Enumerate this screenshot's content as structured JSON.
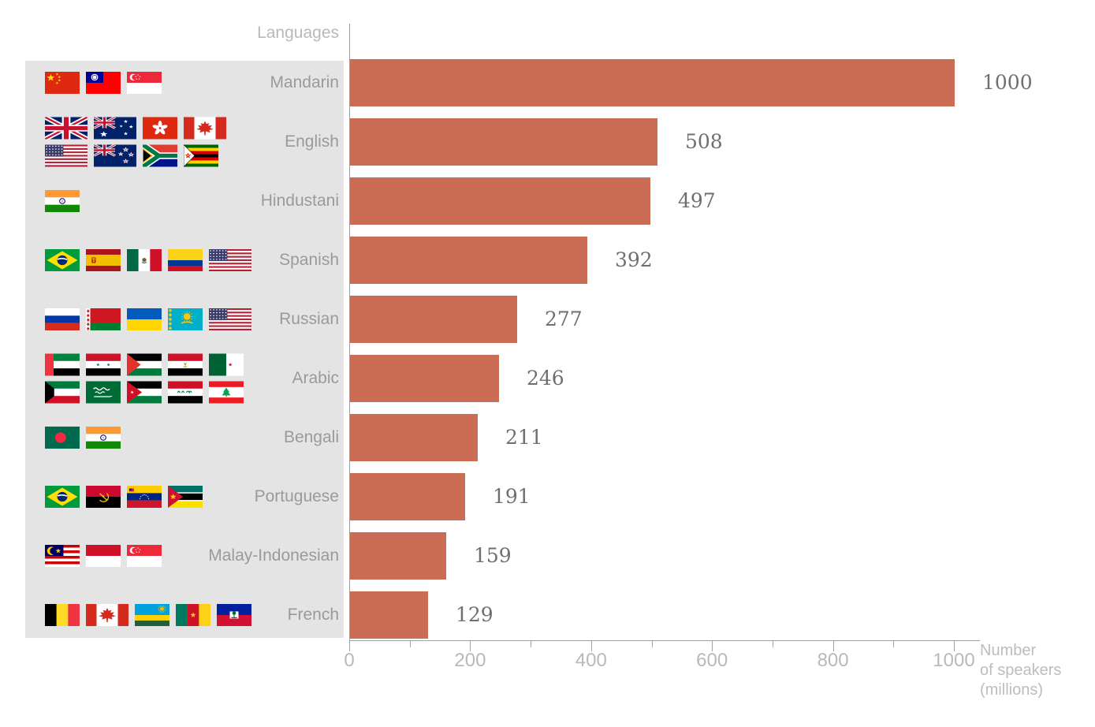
{
  "header": {
    "column_label": "Languages"
  },
  "axis": {
    "caption_lines": [
      "Number",
      "of speakers",
      "(millions)"
    ]
  },
  "chart_data": {
    "type": "bar",
    "orientation": "horizontal",
    "title": "",
    "column_header": "Languages",
    "xlabel": "Number of speakers (millions)",
    "ylabel": "Languages",
    "xlim": [
      0,
      1000
    ],
    "x_ticks": [
      0,
      200,
      400,
      600,
      800,
      1000
    ],
    "x_minor_ticks": [
      100,
      300,
      500,
      700,
      900
    ],
    "grid": false,
    "legend": false,
    "bar_color": "#cb6d54",
    "panel_color": "#e4e4e4",
    "axis_color": "#9e9e9e",
    "categories": [
      "Mandarin",
      "English",
      "Hindustani",
      "Spanish",
      "Russian",
      "Arabic",
      "Bengali",
      "Portuguese",
      "Malay-Indonesian",
      "French"
    ],
    "values": [
      1000,
      508,
      497,
      392,
      277,
      246,
      211,
      191,
      159,
      129
    ],
    "flags": [
      [
        "china",
        "taiwan",
        "singapore"
      ],
      [
        "united-kingdom",
        "australia",
        "hong-kong",
        "canada",
        "united-states",
        "new-zealand",
        "south-africa",
        "zimbabwe"
      ],
      [
        "india"
      ],
      [
        "brazil",
        "spain",
        "mexico",
        "colombia",
        "united-states"
      ],
      [
        "russia",
        "belarus",
        "ukraine",
        "kazakhstan",
        "united-states"
      ],
      [
        "united-arab-emirates",
        "syria",
        "palestine",
        "egypt",
        "algeria",
        "kuwait",
        "saudi-arabia",
        "jordan",
        "iraq",
        "lebanon"
      ],
      [
        "bangladesh",
        "india"
      ],
      [
        "brazil",
        "angola",
        "venezuela",
        "mozambique"
      ],
      [
        "malaysia",
        "indonesia",
        "singapore"
      ],
      [
        "belgium",
        "canada",
        "rwanda",
        "cameroon",
        "haiti"
      ]
    ],
    "flag_rows": [
      1,
      2,
      1,
      1,
      1,
      2,
      1,
      1,
      1,
      1
    ]
  }
}
